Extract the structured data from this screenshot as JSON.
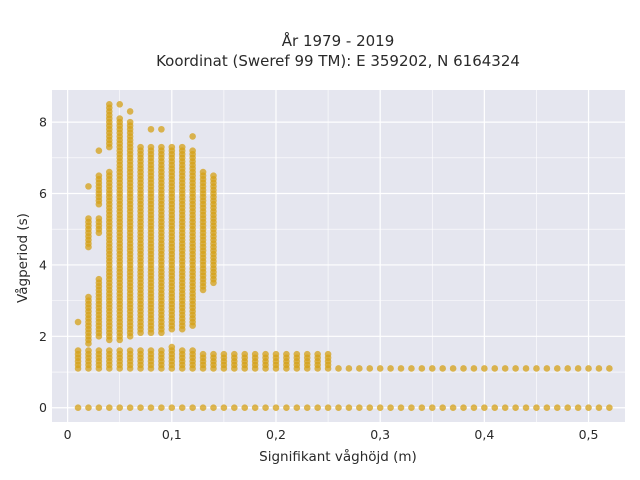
{
  "chart_data": {
    "type": "scatter",
    "title_line1": "År 1979 - 2019",
    "title_line2": "Koordinat (Sweref 99 TM): E 359202, N 6164324",
    "xlabel": "Signifikant våghöjd (m)",
    "ylabel": "Vågperiod (s)",
    "xlim": [
      -0.015,
      0.535
    ],
    "ylim": [
      -0.4,
      8.9
    ],
    "x_ticks": [
      0,
      0.1,
      0.2,
      0.3,
      0.4,
      0.5
    ],
    "x_tick_labels": [
      "0",
      "0,1",
      "0,2",
      "0,3",
      "0,4",
      "0,5"
    ],
    "y_ticks": [
      0,
      2,
      4,
      6,
      8
    ],
    "y_tick_labels": [
      "0",
      "2",
      "4",
      "6",
      "8"
    ],
    "grid": true,
    "marker_color": "#d4a017",
    "plot_background": "#e5e6ef",
    "columns": [
      {
        "x": 0.01,
        "segments": [
          [
            0.0,
            0.0
          ],
          [
            1.1,
            1.6
          ],
          [
            2.4,
            2.4
          ]
        ]
      },
      {
        "x": 0.02,
        "segments": [
          [
            0.0,
            0.0
          ],
          [
            1.1,
            1.6
          ],
          [
            1.8,
            3.1
          ],
          [
            4.5,
            5.3
          ],
          [
            6.2,
            6.2
          ]
        ]
      },
      {
        "x": 0.03,
        "segments": [
          [
            0.0,
            0.0
          ],
          [
            1.1,
            1.6
          ],
          [
            2.0,
            3.6
          ],
          [
            4.9,
            5.3
          ],
          [
            5.7,
            6.5
          ],
          [
            7.2,
            7.2
          ]
        ]
      },
      {
        "x": 0.04,
        "segments": [
          [
            0.0,
            0.0
          ],
          [
            1.1,
            1.6
          ],
          [
            1.9,
            6.6
          ],
          [
            7.3,
            8.5
          ]
        ]
      },
      {
        "x": 0.05,
        "segments": [
          [
            0.0,
            0.0
          ],
          [
            1.1,
            1.6
          ],
          [
            1.9,
            8.1
          ],
          [
            8.5,
            8.5
          ]
        ]
      },
      {
        "x": 0.06,
        "segments": [
          [
            0.0,
            0.0
          ],
          [
            1.1,
            1.6
          ],
          [
            2.0,
            8.0
          ],
          [
            8.3,
            8.3
          ]
        ]
      },
      {
        "x": 0.07,
        "segments": [
          [
            0.0,
            0.0
          ],
          [
            1.1,
            1.6
          ],
          [
            2.1,
            7.3
          ]
        ]
      },
      {
        "x": 0.08,
        "segments": [
          [
            0.0,
            0.0
          ],
          [
            1.1,
            1.6
          ],
          [
            2.1,
            7.3
          ],
          [
            7.8,
            7.8
          ]
        ]
      },
      {
        "x": 0.09,
        "segments": [
          [
            0.0,
            0.0
          ],
          [
            1.1,
            1.6
          ],
          [
            2.1,
            7.3
          ],
          [
            7.8,
            7.8
          ]
        ]
      },
      {
        "x": 0.1,
        "segments": [
          [
            0.0,
            0.0
          ],
          [
            1.1,
            1.7
          ],
          [
            2.2,
            7.3
          ]
        ]
      },
      {
        "x": 0.11,
        "segments": [
          [
            0.0,
            0.0
          ],
          [
            1.1,
            1.6
          ],
          [
            2.2,
            7.3
          ]
        ]
      },
      {
        "x": 0.12,
        "segments": [
          [
            0.0,
            0.0
          ],
          [
            1.1,
            1.6
          ],
          [
            2.3,
            7.2
          ],
          [
            7.6,
            7.6
          ]
        ]
      },
      {
        "x": 0.13,
        "segments": [
          [
            0.0,
            0.0
          ],
          [
            1.1,
            1.5
          ],
          [
            3.3,
            6.6
          ]
        ]
      },
      {
        "x": 0.14,
        "segments": [
          [
            0.0,
            0.0
          ],
          [
            1.1,
            1.5
          ],
          [
            3.5,
            6.5
          ]
        ]
      },
      {
        "x": 0.15,
        "segments": [
          [
            0.0,
            0.0
          ],
          [
            1.1,
            1.5
          ]
        ]
      },
      {
        "x": 0.16,
        "segments": [
          [
            0.0,
            0.0
          ],
          [
            1.1,
            1.5
          ]
        ]
      },
      {
        "x": 0.17,
        "segments": [
          [
            0.0,
            0.0
          ],
          [
            1.1,
            1.5
          ]
        ]
      },
      {
        "x": 0.18,
        "segments": [
          [
            0.0,
            0.0
          ],
          [
            1.1,
            1.5
          ]
        ]
      },
      {
        "x": 0.19,
        "segments": [
          [
            0.0,
            0.0
          ],
          [
            1.1,
            1.5
          ]
        ]
      },
      {
        "x": 0.2,
        "segments": [
          [
            0.0,
            0.0
          ],
          [
            1.1,
            1.5
          ]
        ]
      },
      {
        "x": 0.21,
        "segments": [
          [
            0.0,
            0.0
          ],
          [
            1.1,
            1.5
          ]
        ]
      },
      {
        "x": 0.22,
        "segments": [
          [
            0.0,
            0.0
          ],
          [
            1.1,
            1.5
          ]
        ]
      },
      {
        "x": 0.23,
        "segments": [
          [
            0.0,
            0.0
          ],
          [
            1.1,
            1.5
          ]
        ]
      },
      {
        "x": 0.24,
        "segments": [
          [
            0.0,
            0.0
          ],
          [
            1.1,
            1.5
          ]
        ]
      },
      {
        "x": 0.25,
        "segments": [
          [
            0.0,
            0.0
          ],
          [
            1.1,
            1.5
          ]
        ]
      },
      {
        "x": 0.26,
        "segments": [
          [
            0.0,
            0.0
          ],
          [
            1.05,
            1.1
          ]
        ]
      },
      {
        "x": 0.27,
        "segments": [
          [
            0.0,
            0.0
          ],
          [
            1.05,
            1.1
          ]
        ]
      },
      {
        "x": 0.28,
        "segments": [
          [
            0.0,
            0.0
          ],
          [
            1.05,
            1.1
          ]
        ]
      },
      {
        "x": 0.29,
        "segments": [
          [
            0.0,
            0.0
          ],
          [
            1.05,
            1.1
          ]
        ]
      },
      {
        "x": 0.3,
        "segments": [
          [
            0.0,
            0.0
          ],
          [
            1.05,
            1.1
          ]
        ]
      },
      {
        "x": 0.31,
        "segments": [
          [
            0.0,
            0.0
          ],
          [
            1.05,
            1.1
          ]
        ]
      },
      {
        "x": 0.32,
        "segments": [
          [
            0.0,
            0.0
          ],
          [
            1.05,
            1.1
          ]
        ]
      },
      {
        "x": 0.33,
        "segments": [
          [
            0.0,
            0.0
          ],
          [
            1.05,
            1.1
          ]
        ]
      },
      {
        "x": 0.34,
        "segments": [
          [
            0.0,
            0.0
          ],
          [
            1.05,
            1.1
          ]
        ]
      },
      {
        "x": 0.35,
        "segments": [
          [
            0.0,
            0.0
          ],
          [
            1.05,
            1.1
          ]
        ]
      },
      {
        "x": 0.36,
        "segments": [
          [
            0.0,
            0.0
          ],
          [
            1.05,
            1.1
          ]
        ]
      },
      {
        "x": 0.37,
        "segments": [
          [
            0.0,
            0.0
          ],
          [
            1.05,
            1.1
          ]
        ]
      },
      {
        "x": 0.38,
        "segments": [
          [
            0.0,
            0.0
          ],
          [
            1.05,
            1.1
          ]
        ]
      },
      {
        "x": 0.39,
        "segments": [
          [
            0.0,
            0.0
          ],
          [
            1.05,
            1.1
          ]
        ]
      },
      {
        "x": 0.4,
        "segments": [
          [
            0.0,
            0.0
          ],
          [
            1.05,
            1.1
          ]
        ]
      },
      {
        "x": 0.41,
        "segments": [
          [
            0.0,
            0.0
          ],
          [
            1.05,
            1.1
          ]
        ]
      },
      {
        "x": 0.42,
        "segments": [
          [
            0.0,
            0.0
          ],
          [
            1.05,
            1.1
          ]
        ]
      },
      {
        "x": 0.43,
        "segments": [
          [
            0.0,
            0.0
          ],
          [
            1.05,
            1.1
          ]
        ]
      },
      {
        "x": 0.44,
        "segments": [
          [
            0.0,
            0.0
          ],
          [
            1.05,
            1.1
          ]
        ]
      },
      {
        "x": 0.45,
        "segments": [
          [
            0.0,
            0.0
          ],
          [
            1.05,
            1.1
          ]
        ]
      },
      {
        "x": 0.46,
        "segments": [
          [
            0.0,
            0.0
          ],
          [
            1.05,
            1.1
          ]
        ]
      },
      {
        "x": 0.47,
        "segments": [
          [
            0.0,
            0.0
          ],
          [
            1.05,
            1.1
          ]
        ]
      },
      {
        "x": 0.48,
        "segments": [
          [
            0.0,
            0.0
          ],
          [
            1.05,
            1.1
          ]
        ]
      },
      {
        "x": 0.49,
        "segments": [
          [
            0.0,
            0.0
          ],
          [
            1.05,
            1.1
          ]
        ]
      },
      {
        "x": 0.5,
        "segments": [
          [
            0.0,
            0.0
          ],
          [
            1.05,
            1.1
          ]
        ]
      },
      {
        "x": 0.51,
        "segments": [
          [
            0.0,
            0.0
          ],
          [
            1.05,
            1.1
          ]
        ]
      },
      {
        "x": 0.52,
        "segments": [
          [
            0.0,
            0.0
          ],
          [
            1.05,
            1.1
          ]
        ]
      }
    ]
  }
}
